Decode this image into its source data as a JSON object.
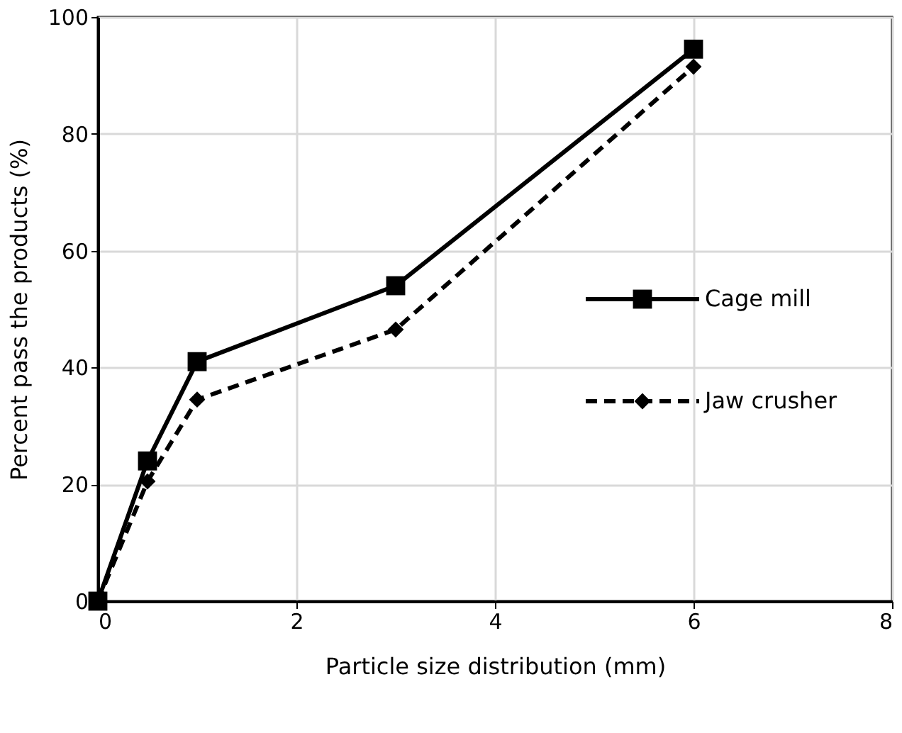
{
  "chart_data": {
    "type": "line",
    "xlabel": "Particle size distribution (mm)",
    "ylabel": "Percent pass the products (%)",
    "x": [
      0,
      0.5,
      1,
      3,
      6
    ],
    "series": [
      {
        "name": "Cage mill",
        "color": "#000000",
        "marker": "square",
        "line_style": "solid",
        "values": [
          0,
          24,
          41,
          54,
          94.5
        ]
      },
      {
        "name": "Jaw crusher",
        "color": "#000000",
        "marker": "diamond",
        "line_style": "dashed",
        "values": [
          0,
          20.5,
          34.5,
          46.5,
          91.5
        ]
      }
    ],
    "xlim": [
      0,
      8
    ],
    "xticks": [
      0,
      2,
      4,
      6,
      8
    ],
    "ylim": [
      0,
      100
    ],
    "yticks": [
      0,
      20,
      40,
      60,
      80,
      100
    ],
    "grid": true,
    "legend": "right"
  }
}
